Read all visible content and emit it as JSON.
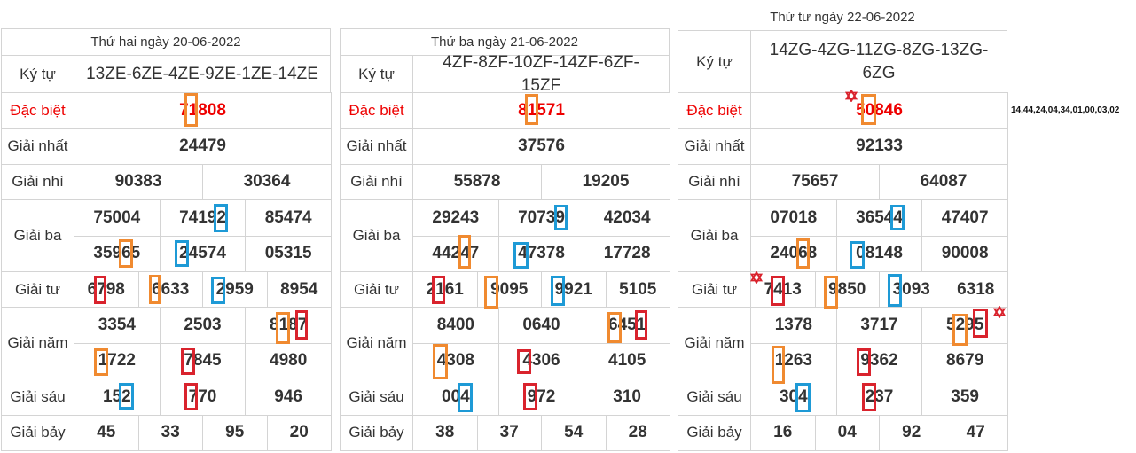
{
  "tables": [
    {
      "title": "Thứ hai ngày 20-06-2022",
      "code_label": "Ký tự",
      "code": "13ZE-6ZE-4ZE-9ZE-1ZE-14ZE",
      "prizes": [
        {
          "label": "Đặc biệt",
          "lines": [
            [
              "71808"
            ]
          ]
        },
        {
          "label": "Giải nhất",
          "lines": [
            [
              "24479"
            ]
          ]
        },
        {
          "label": "Giải nhì",
          "lines": [
            [
              "90383",
              "30364"
            ]
          ]
        },
        {
          "label": "Giải ba",
          "lines": [
            [
              "75004",
              "74192",
              "85474"
            ],
            [
              "35965",
              "24574",
              "05315"
            ]
          ]
        },
        {
          "label": "Giải tư",
          "lines": [
            [
              "6798",
              "6633",
              "2959",
              "8954"
            ]
          ]
        },
        {
          "label": "Giải năm",
          "lines": [
            [
              "3354",
              "2503",
              "8187"
            ],
            [
              "1722",
              "7845",
              "4980"
            ]
          ]
        },
        {
          "label": "Giải sáu",
          "lines": [
            [
              "152",
              "770",
              "946"
            ]
          ]
        },
        {
          "label": "Giải bảy",
          "lines": [
            [
              "45",
              "33",
              "95",
              "20"
            ]
          ]
        }
      ]
    },
    {
      "title": "Thứ ba ngày 21-06-2022",
      "code_label": "Ký tự",
      "code": "4ZF-8ZF-10ZF-14ZF-6ZF-15ZF",
      "prizes": [
        {
          "label": "Đặc biệt",
          "lines": [
            [
              "81571"
            ]
          ]
        },
        {
          "label": "Giải nhất",
          "lines": [
            [
              "37576"
            ]
          ]
        },
        {
          "label": "Giải nhì",
          "lines": [
            [
              "55878",
              "19205"
            ]
          ]
        },
        {
          "label": "Giải ba",
          "lines": [
            [
              "29243",
              "70739",
              "42034"
            ],
            [
              "44247",
              "47378",
              "17728"
            ]
          ]
        },
        {
          "label": "Giải tư",
          "lines": [
            [
              "2161",
              "9095",
              "9921",
              "5105"
            ]
          ]
        },
        {
          "label": "Giải năm",
          "lines": [
            [
              "8400",
              "0640",
              "6451"
            ],
            [
              "4308",
              "4306",
              "4105"
            ]
          ]
        },
        {
          "label": "Giải sáu",
          "lines": [
            [
              "004",
              "972",
              "310"
            ]
          ]
        },
        {
          "label": "Giải bảy",
          "lines": [
            [
              "38",
              "37",
              "54",
              "28"
            ]
          ]
        }
      ]
    },
    {
      "title": "Thứ tư ngày 22-06-2022",
      "code_label": "Ký tự",
      "code": "14ZG-4ZG-11ZG-8ZG-13ZG-6ZG",
      "prizes": [
        {
          "label": "Đặc biệt",
          "lines": [
            [
              "50846"
            ]
          ]
        },
        {
          "label": "Giải nhất",
          "lines": [
            [
              "92133"
            ]
          ]
        },
        {
          "label": "Giải nhì",
          "lines": [
            [
              "75657",
              "64087"
            ]
          ]
        },
        {
          "label": "Giải ba",
          "lines": [
            [
              "07018",
              "36544",
              "47407"
            ],
            [
              "24068",
              "08148",
              "90008"
            ]
          ]
        },
        {
          "label": "Giải tư",
          "lines": [
            [
              "7413",
              "9850",
              "3093",
              "6318"
            ]
          ]
        },
        {
          "label": "Giải năm",
          "lines": [
            [
              "1378",
              "3717",
              "5295"
            ],
            [
              "1263",
              "9362",
              "8679"
            ]
          ]
        },
        {
          "label": "Giải sáu",
          "lines": [
            [
              "304",
              "237",
              "359"
            ]
          ]
        },
        {
          "label": "Giải bảy",
          "lines": [
            [
              "16",
              "04",
              "92",
              "47"
            ]
          ]
        }
      ]
    }
  ],
  "side_note": "14,44,24,04,34,01,00,03,02"
}
